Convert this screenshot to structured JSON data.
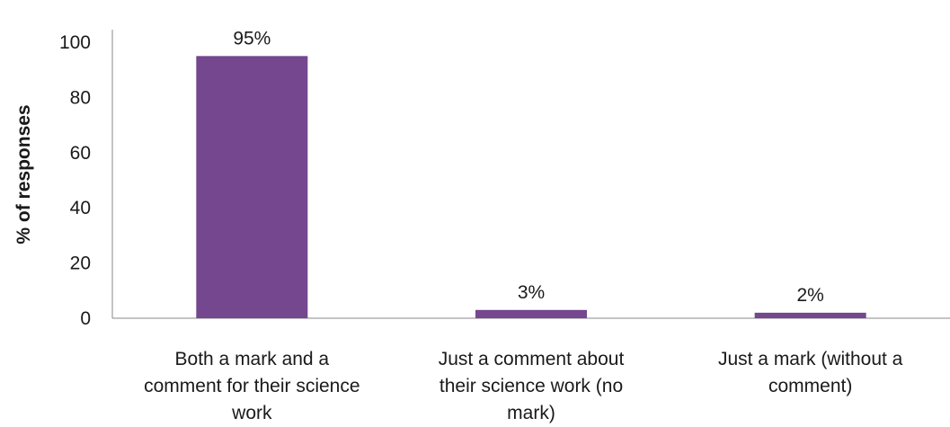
{
  "chart_data": {
    "type": "bar",
    "categories": [
      "Both a mark and a comment for their science work",
      "Just a comment about their science work (no mark)",
      "Just a mark (without a comment)"
    ],
    "category_lines": [
      [
        "Both a mark and a",
        "comment for their science",
        "work"
      ],
      [
        "Just a comment about",
        "their science work (no",
        "mark)"
      ],
      [
        "Just a mark (without a",
        "comment)"
      ]
    ],
    "values": [
      95,
      3,
      2
    ],
    "data_labels": [
      "95%",
      "3%",
      "2%"
    ],
    "ylabel": "% of responses",
    "xlabel": "",
    "ylim": [
      0,
      100
    ],
    "yticks": [
      "0",
      "20",
      "40",
      "60",
      "80",
      "100"
    ],
    "grid": false,
    "bar_color": "#74478f"
  }
}
